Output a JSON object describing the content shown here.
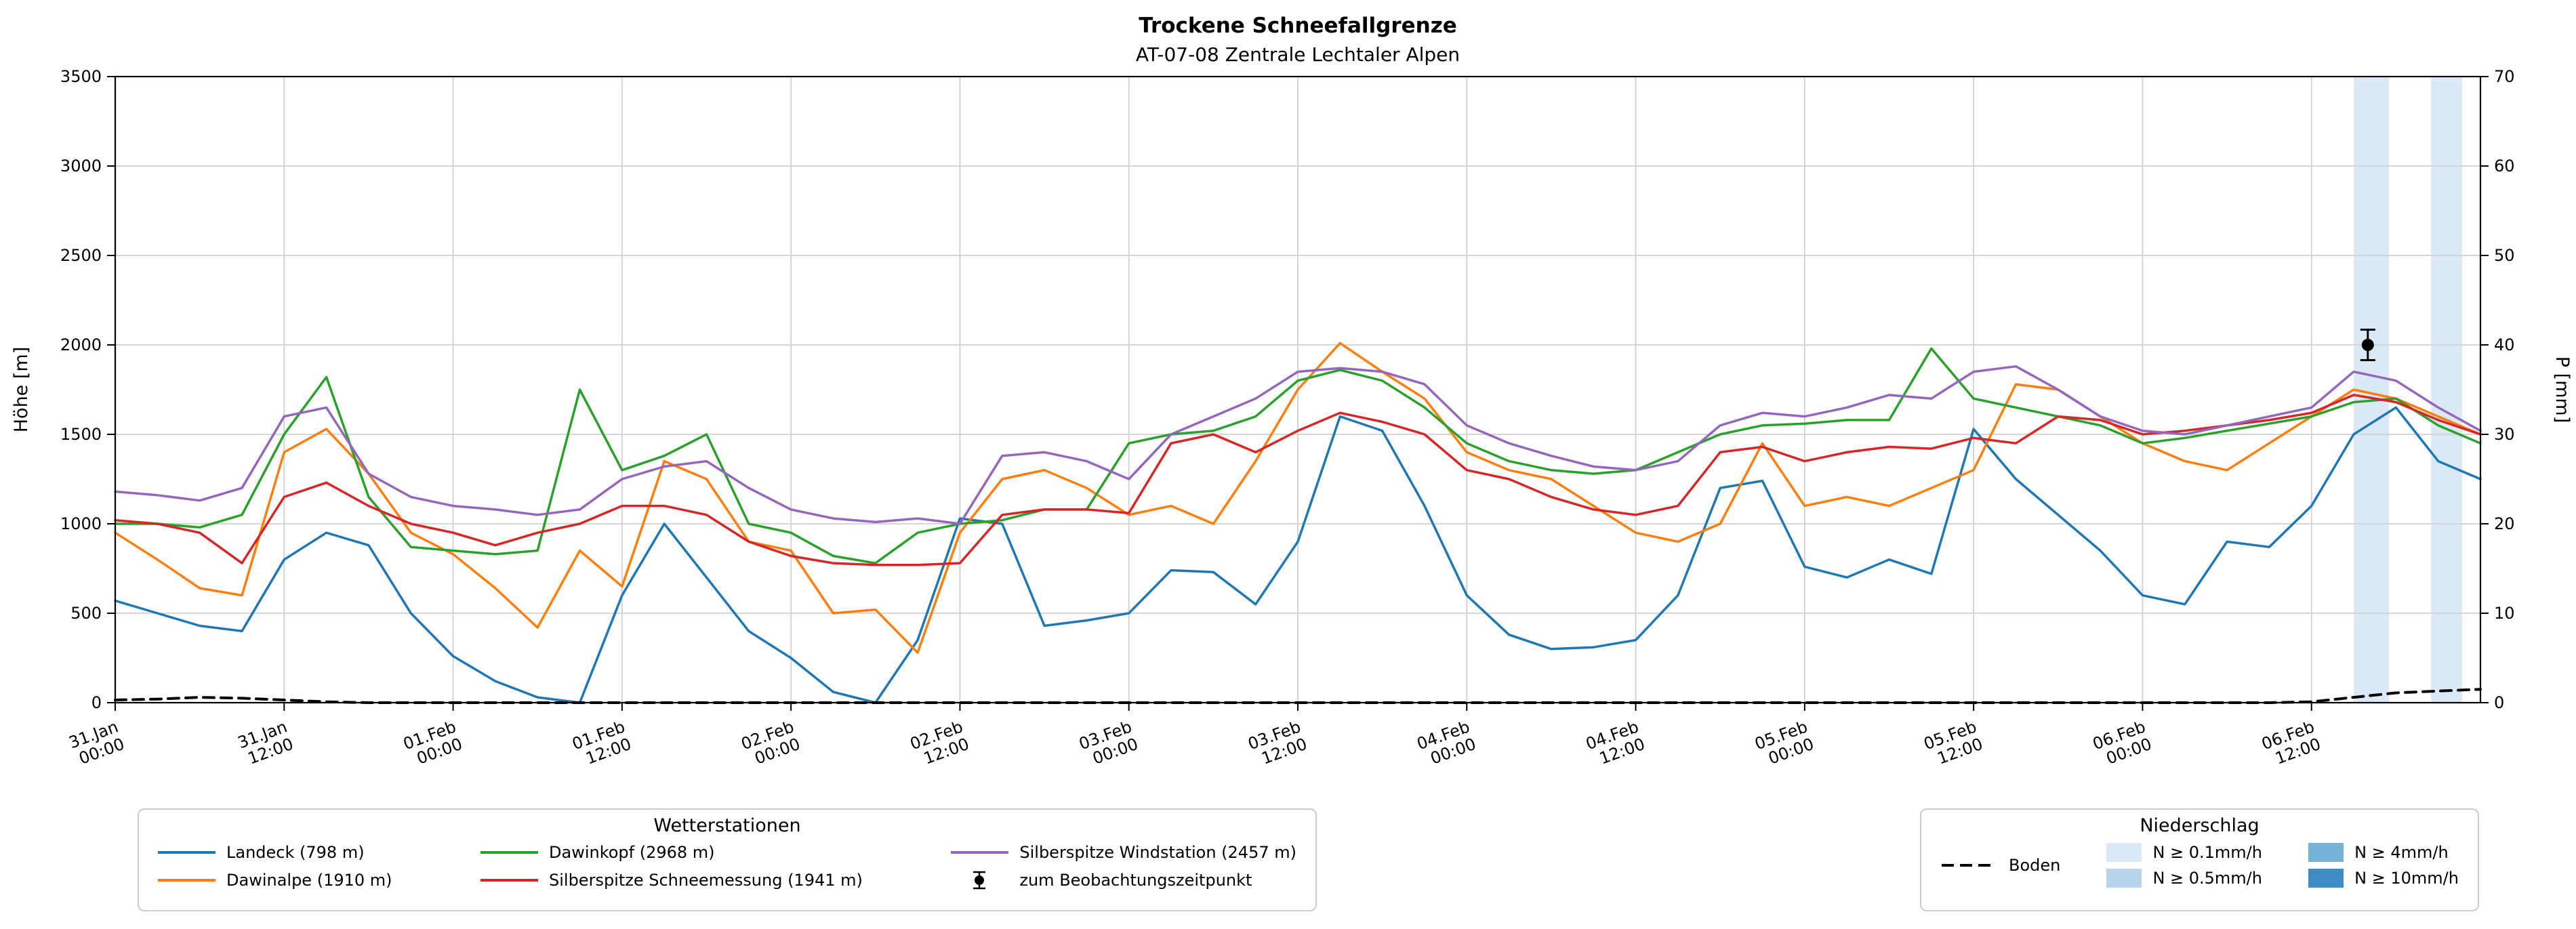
{
  "chart_data": {
    "type": "line",
    "title": "Trockene Schneefallgrenze",
    "subtitle": "AT-07-08 Zentrale Lechtaler Alpen",
    "ylabel_left": "Höhe [m]",
    "ylabel_right": "P [mm]",
    "ylim_left": [
      0,
      3500
    ],
    "ylim_right": [
      0,
      70
    ],
    "yticks_left": [
      0,
      500,
      1000,
      1500,
      2000,
      2500,
      3000,
      3500
    ],
    "yticks_right": [
      0,
      10,
      20,
      30,
      40,
      50,
      60,
      70
    ],
    "xlim": [
      0,
      168
    ],
    "x_unit": "hours since 31.Jan 00:00",
    "grid": true,
    "legend_position": "below",
    "xticks": [
      {
        "hour": 0,
        "date": "31.Jan",
        "time": "00:00"
      },
      {
        "hour": 12,
        "date": "31.Jan",
        "time": "12:00"
      },
      {
        "hour": 24,
        "date": "01.Feb",
        "time": "00:00"
      },
      {
        "hour": 36,
        "date": "01.Feb",
        "time": "12:00"
      },
      {
        "hour": 48,
        "date": "02.Feb",
        "time": "00:00"
      },
      {
        "hour": 60,
        "date": "02.Feb",
        "time": "12:00"
      },
      {
        "hour": 72,
        "date": "03.Feb",
        "time": "00:00"
      },
      {
        "hour": 84,
        "date": "03.Feb",
        "time": "12:00"
      },
      {
        "hour": 96,
        "date": "04.Feb",
        "time": "00:00"
      },
      {
        "hour": 108,
        "date": "04.Feb",
        "time": "12:00"
      },
      {
        "hour": 120,
        "date": "05.Feb",
        "time": "00:00"
      },
      {
        "hour": 132,
        "date": "05.Feb",
        "time": "12:00"
      },
      {
        "hour": 144,
        "date": "06.Feb",
        "time": "00:00"
      },
      {
        "hour": 156,
        "date": "06.Feb",
        "time": "12:00"
      }
    ],
    "x_hours": [
      0,
      3,
      6,
      9,
      12,
      15,
      18,
      21,
      24,
      27,
      30,
      33,
      36,
      39,
      42,
      45,
      48,
      51,
      54,
      57,
      60,
      63,
      66,
      69,
      72,
      75,
      78,
      81,
      84,
      87,
      90,
      93,
      96,
      99,
      102,
      105,
      108,
      111,
      114,
      117,
      120,
      123,
      126,
      129,
      132,
      135,
      138,
      141,
      144,
      147,
      150,
      153,
      156,
      159,
      162,
      165,
      168
    ],
    "series": [
      {
        "name": "Landeck (798 m)",
        "color": "#1f77b4",
        "values": [
          570,
          500,
          430,
          400,
          800,
          950,
          880,
          500,
          260,
          120,
          30,
          0,
          600,
          1000,
          700,
          400,
          250,
          60,
          0,
          350,
          1030,
          1000,
          430,
          460,
          500,
          740,
          730,
          550,
          900,
          1600,
          1520,
          1100,
          600,
          380,
          300,
          310,
          350,
          600,
          1200,
          1240,
          760,
          700,
          800,
          720,
          1530,
          1250,
          1050,
          850,
          600,
          550,
          900,
          870,
          1100,
          1500,
          1650,
          1350,
          1250
        ]
      },
      {
        "name": "Dawinalpe (1910 m)",
        "color": "#ff7f0e",
        "values": [
          950,
          800,
          640,
          600,
          1400,
          1530,
          1280,
          950,
          830,
          640,
          420,
          850,
          650,
          1350,
          1250,
          900,
          850,
          500,
          520,
          280,
          950,
          1250,
          1300,
          1200,
          1050,
          1100,
          1000,
          1350,
          1750,
          2010,
          1850,
          1700,
          1400,
          1300,
          1250,
          1100,
          950,
          900,
          1000,
          1450,
          1100,
          1150,
          1100,
          1200,
          1300,
          1780,
          1750,
          1600,
          1450,
          1350,
          1300,
          1450,
          1600,
          1750,
          1700,
          1600,
          1500
        ]
      },
      {
        "name": "Dawinkopf (2968 m)",
        "color": "#2ca02c",
        "values": [
          1000,
          1000,
          980,
          1050,
          1500,
          1820,
          1150,
          870,
          850,
          830,
          850,
          1750,
          1300,
          1380,
          1500,
          1000,
          950,
          820,
          780,
          950,
          1000,
          1020,
          1080,
          1080,
          1450,
          1500,
          1520,
          1600,
          1800,
          1860,
          1800,
          1650,
          1450,
          1350,
          1300,
          1280,
          1300,
          1400,
          1500,
          1550,
          1560,
          1580,
          1580,
          1980,
          1700,
          1650,
          1600,
          1550,
          1450,
          1480,
          1520,
          1560,
          1600,
          1680,
          1700,
          1550,
          1450
        ]
      },
      {
        "name": "Silberspitze Schneemessung (1941 m)",
        "color": "#d62728",
        "values": [
          1020,
          1000,
          950,
          780,
          1150,
          1230,
          1100,
          1000,
          950,
          880,
          950,
          1000,
          1100,
          1100,
          1050,
          900,
          820,
          780,
          770,
          770,
          780,
          1050,
          1080,
          1080,
          1060,
          1450,
          1500,
          1400,
          1520,
          1620,
          1570,
          1500,
          1300,
          1250,
          1150,
          1080,
          1050,
          1100,
          1400,
          1430,
          1350,
          1400,
          1430,
          1420,
          1480,
          1450,
          1600,
          1580,
          1500,
          1520,
          1550,
          1580,
          1620,
          1720,
          1680,
          1580,
          1500
        ]
      },
      {
        "name": "Silberspitze Windstation (2457 m)",
        "color": "#9467bd",
        "values": [
          1180,
          1160,
          1130,
          1200,
          1600,
          1650,
          1280,
          1150,
          1100,
          1080,
          1050,
          1080,
          1250,
          1320,
          1350,
          1200,
          1080,
          1030,
          1010,
          1030,
          1000,
          1380,
          1400,
          1350,
          1250,
          1500,
          1600,
          1700,
          1850,
          1870,
          1850,
          1780,
          1550,
          1450,
          1380,
          1320,
          1300,
          1350,
          1550,
          1620,
          1600,
          1650,
          1720,
          1700,
          1850,
          1880,
          1750,
          1600,
          1520,
          1500,
          1550,
          1600,
          1650,
          1850,
          1800,
          1650,
          1520
        ]
      }
    ],
    "ground_series": {
      "name": "Boden",
      "color": "#000000",
      "style": "dashed",
      "values": [
        15,
        20,
        30,
        25,
        15,
        5,
        0,
        0,
        0,
        0,
        0,
        0,
        0,
        0,
        0,
        0,
        0,
        0,
        0,
        0,
        0,
        0,
        0,
        0,
        0,
        0,
        0,
        0,
        0,
        0,
        0,
        0,
        0,
        0,
        0,
        0,
        0,
        0,
        0,
        0,
        0,
        0,
        0,
        0,
        0,
        0,
        0,
        0,
        0,
        0,
        0,
        0,
        5,
        30,
        55,
        65,
        75
      ]
    },
    "observation_marker": {
      "label": "zum Beobachtungszeitpunkt",
      "x_hour": 160,
      "elevation_m": 2000,
      "error_m": 85,
      "color": "#000000"
    },
    "precip_bands": [
      {
        "x0_hour": 159,
        "x1_hour": 161.5,
        "class": "N ≥ 0.1mm/h",
        "color": "#dbe9f6"
      },
      {
        "x0_hour": 164.5,
        "x1_hour": 166.7,
        "class": "N ≥ 0.1mm/h",
        "color": "#dbe9f6"
      }
    ]
  },
  "legend_stations": {
    "title": "Wetterstationen",
    "items": [
      {
        "label": "Landeck (798 m)",
        "swatch": "line",
        "color": "#1f77b4"
      },
      {
        "label": "Dawinkopf (2968 m)",
        "swatch": "line",
        "color": "#2ca02c"
      },
      {
        "label": "Silberspitze Windstation (2457 m)",
        "swatch": "line",
        "color": "#9467bd"
      },
      {
        "label": "Dawinalpe (1910 m)",
        "swatch": "line",
        "color": "#ff7f0e"
      },
      {
        "label": "Silberspitze Schneemessung (1941 m)",
        "swatch": "line",
        "color": "#d62728"
      },
      {
        "label": "zum Beobachtungszeitpunkt",
        "swatch": "errorbar",
        "color": "#000000"
      }
    ]
  },
  "legend_precip": {
    "title": "Niederschlag",
    "boden_label": "Boden",
    "items": [
      {
        "label": "N ≥ 0.1mm/h",
        "color": "#dbe9f6"
      },
      {
        "label": "N ≥ 0.5mm/h",
        "color": "#b8d4ea"
      },
      {
        "label": "N ≥ 4mm/h",
        "color": "#73b2d8"
      },
      {
        "label": "N ≥ 10mm/h",
        "color": "#3d8dc4"
      }
    ]
  }
}
